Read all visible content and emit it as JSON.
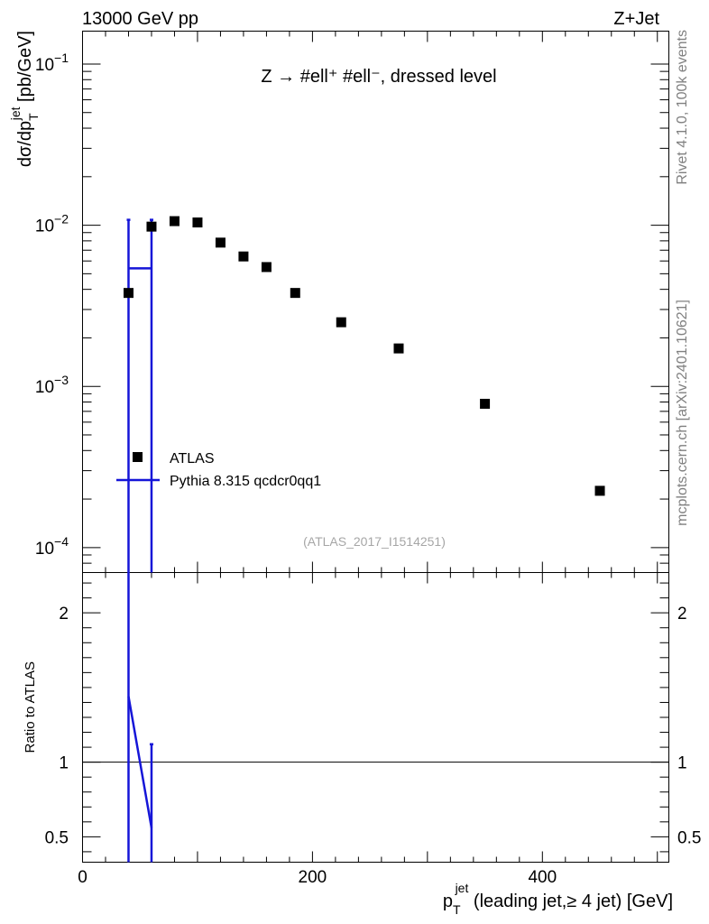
{
  "header": {
    "left": "13000 GeV pp",
    "right": "Z+Jet"
  },
  "side_labels": {
    "rivet": "Rivet 4.1.0,  100k events",
    "mcplots": "mcplots.cern.ch [arXiv:2401.10621]"
  },
  "chart_data": {
    "type": "scatter",
    "title": "Z → #ell⁺ #ell⁻, dressed level",
    "analysis_id": "(ATLAS_2017_I1514251)",
    "colors": {
      "data": "#000000",
      "mc": "#1515d8"
    },
    "x": {
      "range": [
        0,
        510
      ],
      "ticks": [
        0,
        200,
        400
      ],
      "tick_labels": [
        "0",
        "200",
        "400"
      ]
    },
    "xlabel": {
      "main": "p",
      "sub": "T",
      "sup": "jet",
      "rest": " (leading jet,≥ 4 jet) [GeV]"
    },
    "main_panel": {
      "yscale": "log",
      "ylim": [
        7e-05,
        0.16
      ],
      "ylabel": {
        "pre": "dσ/dp",
        "sub": "T",
        "sup": "jet",
        "post": " [pb/GeV]"
      },
      "tick_labels": [
        {
          "value": 0.1,
          "base": "10",
          "exp": "−1"
        },
        {
          "value": 0.01,
          "base": "10",
          "exp": "−2"
        },
        {
          "value": 0.001,
          "base": "10",
          "exp": "−3"
        },
        {
          "value": 0.0001,
          "base": "10",
          "exp": "−4"
        }
      ],
      "series": [
        {
          "name": "ATLAS",
          "kind": "data",
          "points": [
            {
              "x": 40,
              "y": 0.0038
            },
            {
              "x": 60,
              "y": 0.0098
            },
            {
              "x": 80,
              "y": 0.0106
            },
            {
              "x": 100,
              "y": 0.0104
            },
            {
              "x": 120,
              "y": 0.0078
            },
            {
              "x": 140,
              "y": 0.0064
            },
            {
              "x": 160,
              "y": 0.0055
            },
            {
              "x": 185,
              "y": 0.0038
            },
            {
              "x": 225,
              "y": 0.0025
            },
            {
              "x": 275,
              "y": 0.00172
            },
            {
              "x": 350,
              "y": 0.00078
            },
            {
              "x": 450,
              "y": 0.000225
            }
          ]
        },
        {
          "name": "Pythia 8.315 qcdcr0qq1",
          "kind": "mc",
          "points": [
            {
              "x": 50,
              "xlo": 40,
              "xhi": 60,
              "y": 0.0054
            }
          ],
          "error_lines": [
            {
              "x": 40,
              "ylo": 7e-05,
              "yhi": 0.0108
            },
            {
              "x": 60,
              "ylo": 7e-05,
              "yhi": 0.0108
            }
          ]
        }
      ],
      "legend": {
        "position": "lower-left"
      }
    },
    "ratio_panel": {
      "ylabel": "Ratio to ATLAS",
      "ylim": [
        0.33,
        2.27
      ],
      "ticks": [
        0.5,
        1,
        2
      ],
      "tick_labels": [
        "0.5",
        "1",
        "2"
      ],
      "reference": 1,
      "mc_ratio": [
        {
          "x": 40,
          "y": 1.44
        },
        {
          "x": 60,
          "y": 0.56
        }
      ],
      "error_lines": [
        {
          "x": 40,
          "ylo": 0.33,
          "yhi": 2.27
        },
        {
          "x": 60,
          "ylo": 0.33,
          "yhi": 1.12
        }
      ]
    }
  }
}
